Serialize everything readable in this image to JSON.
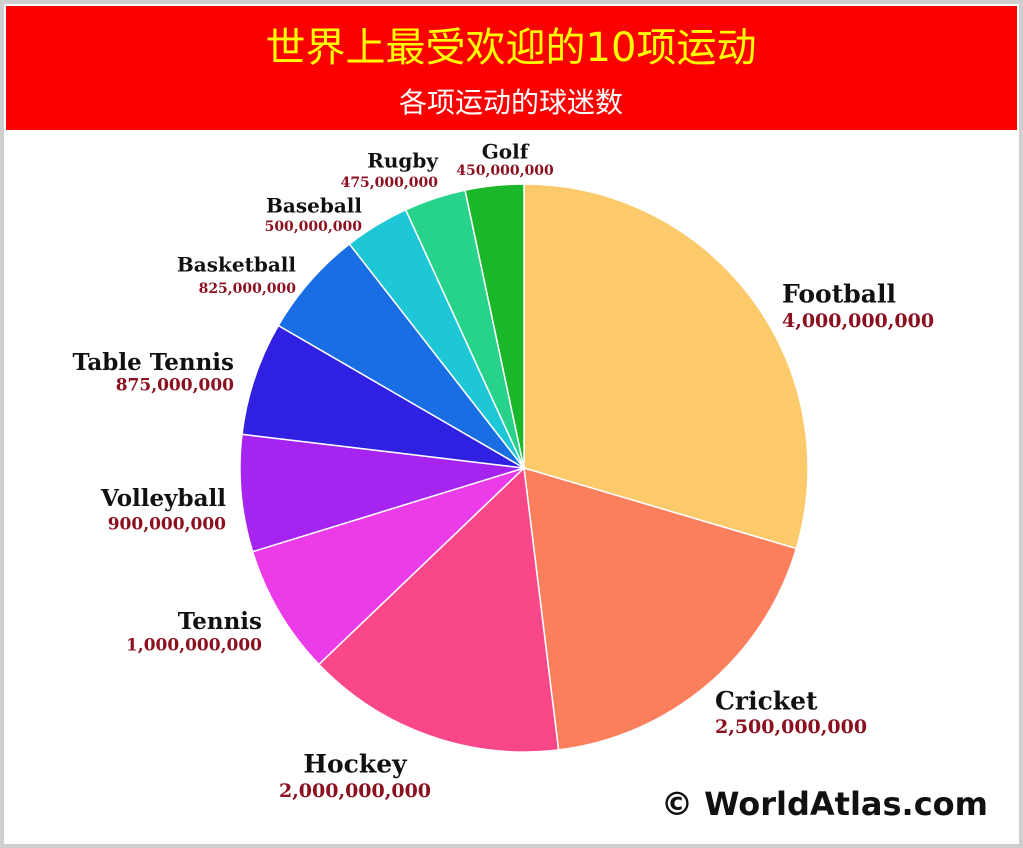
{
  "chart_data": {
    "type": "pie",
    "title": "世界上最受欢迎的10项运动",
    "subtitle": "各项运动的球迷数",
    "source": "© WorldAtlas.com",
    "categories": [
      "Football",
      "Cricket",
      "Hockey",
      "Tennis",
      "Volleyball",
      "Table Tennis",
      "Basketball",
      "Baseball",
      "Rugby",
      "Golf"
    ],
    "values": [
      4000000000,
      2500000000,
      2000000000,
      1000000000,
      900000000,
      875000000,
      825000000,
      500000000,
      475000000,
      450000000
    ],
    "value_labels": [
      "4,000,000,000",
      "2,500,000,000",
      "2,000,000,000",
      "1,000,000,000",
      "900,000,000",
      "875,000,000",
      "825,000,000",
      "500,000,000",
      "475,000,000",
      "450,000,000"
    ],
    "colors": [
      "#fcc96b",
      "#fb7f5c",
      "#f9478a",
      "#ec3be8",
      "#a524f0",
      "#2f20e2",
      "#1a6ee3",
      "#1dc7d6",
      "#27d28a",
      "#1bb72a"
    ]
  }
}
